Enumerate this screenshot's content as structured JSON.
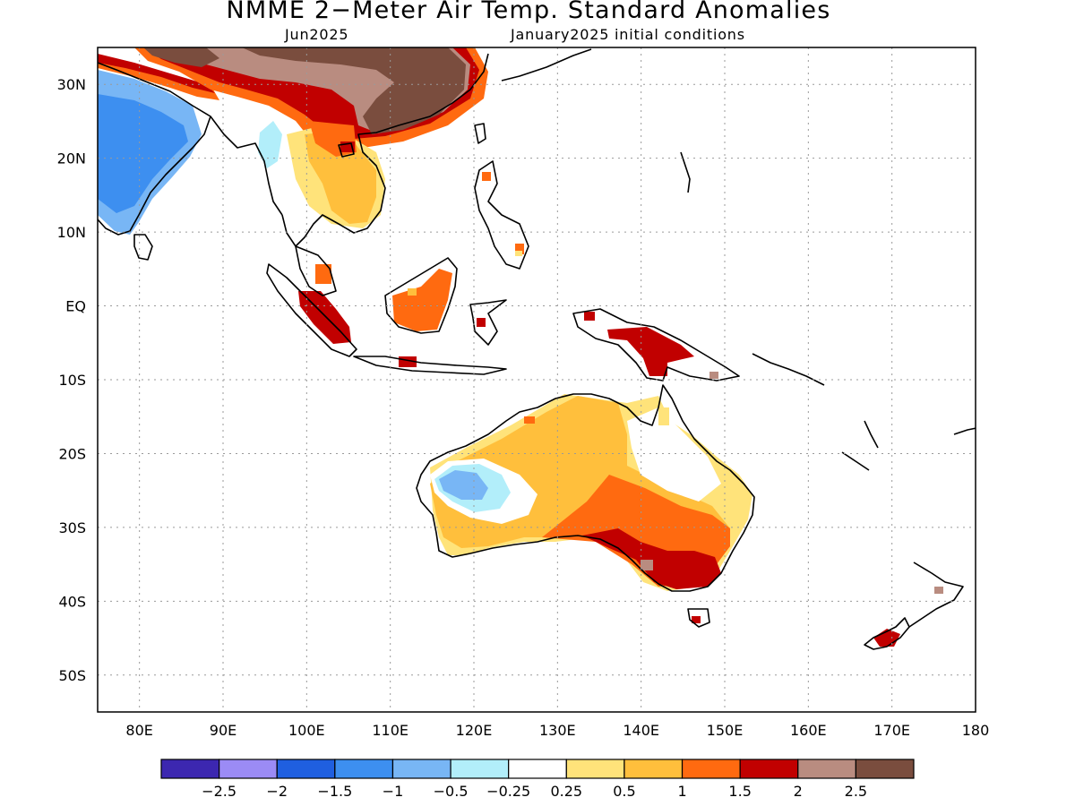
{
  "title": "NMME 2−Meter Air Temp. Standard Anomalies",
  "subtitle_left": "Jun2025",
  "subtitle_right": "January2025 initial conditions",
  "map": {
    "lon_range": [
      75,
      180
    ],
    "lat_range": [
      -55,
      35
    ],
    "lon_ticks": [
      "80E",
      "90E",
      "100E",
      "110E",
      "120E",
      "130E",
      "140E",
      "150E",
      "160E",
      "170E",
      "180"
    ],
    "lat_ticks": [
      "30N",
      "20N",
      "10N",
      "EQ",
      "10S",
      "20S",
      "30S",
      "40S",
      "50S"
    ],
    "grid": true
  },
  "colorbar": {
    "colors": [
      "#3c27b0",
      "#9b8bf5",
      "#1f5fe0",
      "#3d8ff0",
      "#78b6f5",
      "#b2eefa",
      "#ffffff",
      "#ffe37a",
      "#ffbf3c",
      "#ff6a10",
      "#c10000",
      "#b98c80",
      "#7a4d3e"
    ],
    "labels": [
      "−2.5",
      "−2",
      "−1.5",
      "−1",
      "−0.5",
      "−0.25",
      "0.25",
      "0.5",
      "1",
      "1.5",
      "2",
      "2.5"
    ]
  }
}
